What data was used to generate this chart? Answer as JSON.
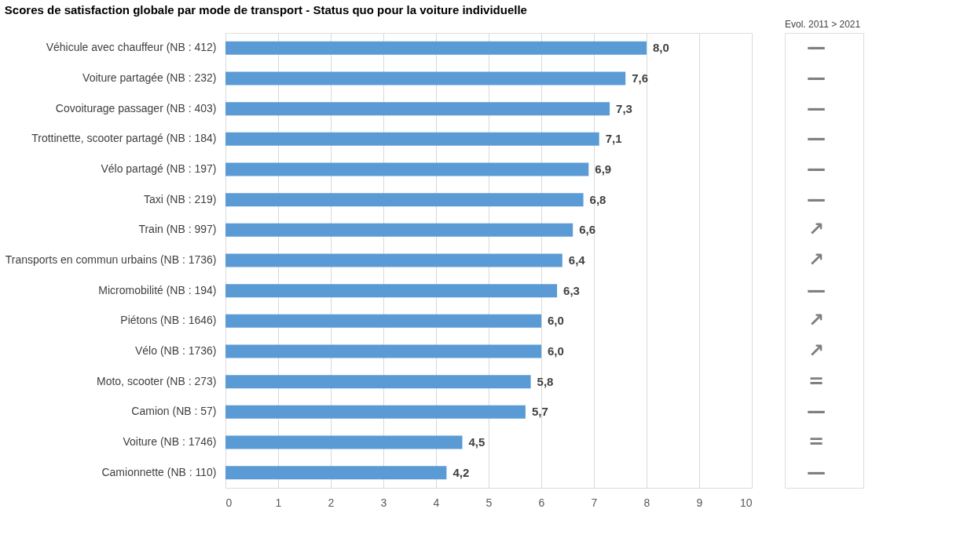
{
  "chart_data": {
    "type": "bar",
    "orientation": "horizontal",
    "title": "Scores de satisfaction globale par mode de transport - Status quo pour la voiture individuelle",
    "categories": [
      "Véhicule avec chauffeur (NB : 412)",
      "Voiture partagée (NB : 232)",
      "Covoiturage passager (NB : 403)",
      "Trottinette, scooter partagé (NB : 184)",
      "Vélo partagé (NB : 197)",
      "Taxi (NB : 219)",
      "Train (NB : 997)",
      "Transports en commun urbains (NB : 1736)",
      "Micromobilité (NB : 194)",
      "Piétons (NB : 1646)",
      "Vélo (NB : 1736)",
      "Moto, scooter (NB : 273)",
      "Camion (NB : 57)",
      "Voiture (NB : 1746)",
      "Camionnette (NB : 110)"
    ],
    "values": [
      8.0,
      7.6,
      7.3,
      7.1,
      6.9,
      6.8,
      6.6,
      6.4,
      6.3,
      6.0,
      6.0,
      5.8,
      5.7,
      4.5,
      4.2
    ],
    "value_labels": [
      "8,0",
      "7,6",
      "7,3",
      "7,1",
      "6,9",
      "6,8",
      "6,6",
      "6,4",
      "6,3",
      "6,0",
      "6,0",
      "5,8",
      "5,7",
      "4,5",
      "4,2"
    ],
    "color": "#5b9bd5",
    "xlim": [
      0,
      10
    ],
    "xticks": [
      0,
      1,
      2,
      3,
      4,
      5,
      6,
      7,
      8,
      9,
      10
    ],
    "grid": "x",
    "annotations": [
      "Evol. 2011 > 2021",
      "—",
      "—",
      "—",
      "—",
      "—",
      "—",
      "↗",
      "↗",
      "—",
      "↗",
      "↗",
      "=",
      "—",
      "=",
      "—"
    ]
  }
}
